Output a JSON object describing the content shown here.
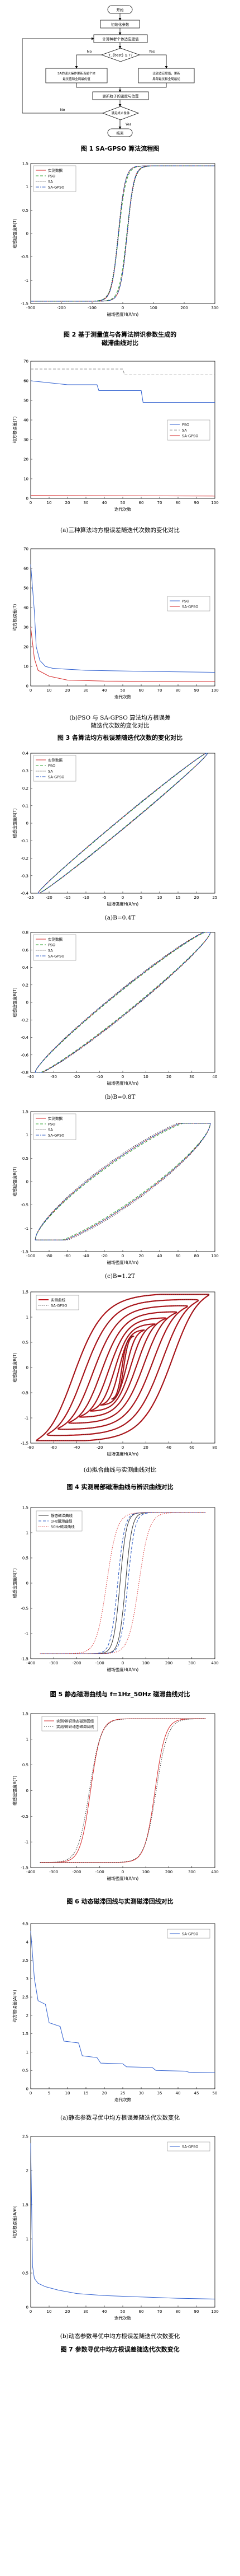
{
  "flowchart": {
    "start": "开始",
    "init": "初始化参数",
    "calc_fit": "计算种群个体适应度值",
    "cond": "T_{best} ≥ T?",
    "no": "No",
    "yes": "Yes",
    "sa": "SA的退火操作更新当前个体最优值和全局最优值",
    "update_local": "比较适应度值，更新局部最优和全局最优",
    "update_pos": "更新粒子的速度与位置",
    "end_cond": "满足终止条件",
    "end": "结束"
  },
  "captions": {
    "fig1": "图 1  SA-GPSO 算法流程图",
    "fig2": "图 2  基于测量值与各算法辨识参数生成的磁滞曲线对比",
    "fig3a": "(a)三种算法均方根误差随迭代次数的变化对比",
    "fig3b": "(b)PSO 与 SA-GPSO 算法均方根误差随迭代次数的变化对比",
    "fig3": "图 3  各算法均方根误差随迭代次数的变化对比",
    "fig4a": "(a)B=0.4T",
    "fig4b": "(b)B=0.8T",
    "fig4c": "(c)B=1.2T",
    "fig4d": "(d)拟合曲线与实测曲线对比",
    "fig4": "图 4  实测局部磁滞曲线与辨识曲线对比",
    "fig5": "图 5  静态磁滞曲线与 f=1Hz_50Hz 磁滞曲线对比",
    "fig6": "图 6  动态磁滞回线与实测磁滞回线对比",
    "fig7a": "(a)静态参数寻优中均方根误差随迭代次数变化",
    "fig7b": "(b)动态参数寻优中均方根误差随迭代次数变化",
    "fig7": "图 7  参数寻优中均方根误差随迭代次数变化"
  },
  "labels": {
    "H_axis": "磁场强度H(A/m)",
    "B_axis": "磁感应强度B(T)",
    "iter_axis": "迭代次数",
    "rmse_axis": "均方根误差(T)",
    "rmse_axis_am": "均方根误差(A/m)",
    "measured": "实测数据",
    "PSO": "PSO",
    "SA": "SA",
    "SA_GPSO": "SA-GPSO",
    "measured_curve": "实测曲线",
    "static_curve": "静态磁滞曲线",
    "dyn1": "1Hz磁滞曲线",
    "dyn50": "50Hz磁滞曲线",
    "dyn_vs_measured": "实测/辨识动态磁滞回线"
  },
  "chart_data": [
    {
      "id": "fig2",
      "type": "line",
      "xlabel": "磁场强度H(A/m)",
      "ylabel": "磁感应强度B(T)",
      "xlim": [
        -300,
        300
      ],
      "ylim": [
        -1.5,
        1.5
      ],
      "xticks": [
        -300,
        -200,
        -100,
        0,
        100,
        200,
        300
      ],
      "yticks": [
        -1.5,
        -1,
        -0.5,
        0,
        0.5,
        1,
        1.5
      ],
      "series": [
        {
          "name": "实测数据",
          "color": "#d62728",
          "style": "solid",
          "Bs": 1.45,
          "a": 22,
          "Hc": 14
        },
        {
          "name": "PSO",
          "color": "#2ca02c",
          "style": "dashed",
          "Bs": 1.45,
          "a": 24,
          "Hc": 13
        },
        {
          "name": "SA",
          "color": "#333333",
          "style": "dotted",
          "Bs": 1.45,
          "a": 23,
          "Hc": 15
        },
        {
          "name": "SA-GPSO",
          "color": "#1f4fbf",
          "style": "dashdot",
          "Bs": 1.45,
          "a": 22,
          "Hc": 14
        }
      ]
    },
    {
      "id": "fig3a",
      "type": "line",
      "xlabel": "迭代次数",
      "ylabel": "均方根误差(T)",
      "xlim": [
        0,
        100
      ],
      "ylim": [
        0,
        70
      ],
      "xticks": [
        0,
        10,
        20,
        30,
        40,
        50,
        60,
        70,
        80,
        90,
        100
      ],
      "yticks": [
        0,
        10,
        20,
        30,
        40,
        50,
        60,
        70
      ],
      "series": [
        {
          "name": "PSO",
          "color": "#2f5fcf",
          "style": "solid",
          "points": [
            [
              0,
              60
            ],
            [
              10,
              59
            ],
            [
              20,
              58
            ],
            [
              36,
              58
            ],
            [
              37,
              55
            ],
            [
              60,
              55
            ],
            [
              61,
              49
            ],
            [
              100,
              49
            ]
          ]
        },
        {
          "name": "SA",
          "color": "#888888",
          "style": "dashed",
          "points": [
            [
              0,
              66
            ],
            [
              50,
              66
            ],
            [
              51,
              63
            ],
            [
              100,
              63
            ]
          ]
        },
        {
          "name": "SA-GPSO",
          "color": "#d62728",
          "style": "solid",
          "points": [
            [
              0,
              1.5
            ],
            [
              100,
              1.2
            ]
          ]
        }
      ]
    },
    {
      "id": "fig3b",
      "type": "line",
      "xlabel": "迭代次数",
      "ylabel": "均方根误差(T)",
      "xlim": [
        0,
        100
      ],
      "ylim": [
        0,
        70
      ],
      "xticks": [
        0,
        10,
        20,
        30,
        40,
        50,
        60,
        70,
        80,
        90,
        100
      ],
      "yticks": [
        0,
        10,
        20,
        30,
        40,
        50,
        60,
        70
      ],
      "series": [
        {
          "name": "PSO",
          "color": "#2f5fcf",
          "style": "solid",
          "points": [
            [
              0,
              62
            ],
            [
              2,
              38
            ],
            [
              3,
              20
            ],
            [
              5,
              13
            ],
            [
              8,
              10
            ],
            [
              12,
              9
            ],
            [
              30,
              8
            ],
            [
              60,
              7.5
            ],
            [
              100,
              7
            ]
          ]
        },
        {
          "name": "SA-GPSO",
          "color": "#d62728",
          "style": "solid",
          "points": [
            [
              0,
              30
            ],
            [
              2,
              14
            ],
            [
              4,
              8
            ],
            [
              10,
              5
            ],
            [
              20,
              3
            ],
            [
              40,
              2.5
            ],
            [
              100,
              2.2
            ]
          ]
        }
      ]
    },
    {
      "id": "fig4a",
      "type": "line",
      "xlabel": "磁场强度H(A/m)",
      "ylabel": "磁感应强度B(T)",
      "xlim": [
        -25,
        25
      ],
      "ylim": [
        -0.4,
        0.4
      ],
      "xticks": [
        -25,
        -20,
        -15,
        -10,
        -5,
        0,
        5,
        10,
        15,
        20,
        25
      ],
      "yticks": [
        -0.4,
        -0.3,
        -0.2,
        -0.1,
        0,
        0.1,
        0.2,
        0.3,
        0.4
      ],
      "series": [
        {
          "name": "实测数据",
          "color": "#d62728",
          "style": "solid",
          "Hm": 23,
          "Bm": 0.4,
          "w": 0.07
        },
        {
          "name": "PSO",
          "color": "#2ca02c",
          "style": "dashed",
          "Hm": 23,
          "Bm": 0.4,
          "w": 0.065
        },
        {
          "name": "SA",
          "color": "#333333",
          "style": "dotted",
          "Hm": 23,
          "Bm": 0.4,
          "w": 0.075
        },
        {
          "name": "SA-GPSO",
          "color": "#1f4fbf",
          "style": "dashdot",
          "Hm": 23,
          "Bm": 0.4,
          "w": 0.07
        }
      ]
    },
    {
      "id": "fig4b",
      "type": "line",
      "xlabel": "磁场强度H(A/m)",
      "ylabel": "磁感应强度B(T)",
      "xlim": [
        -40,
        40
      ],
      "ylim": [
        -0.8,
        0.8
      ],
      "xticks": [
        -40,
        -30,
        -20,
        -10,
        0,
        10,
        20,
        30,
        40
      ],
      "yticks": [
        -0.8,
        -0.6,
        -0.4,
        -0.2,
        0,
        0.2,
        0.4,
        0.6,
        0.8
      ],
      "series": [
        {
          "name": "实测数据",
          "color": "#d62728",
          "style": "solid",
          "Hm": 38,
          "Bm": 0.8,
          "w": 0.16
        },
        {
          "name": "PSO",
          "color": "#2ca02c",
          "style": "dashed",
          "Hm": 38,
          "Bm": 0.8,
          "w": 0.15
        },
        {
          "name": "SA",
          "color": "#333333",
          "style": "dotted",
          "Hm": 38,
          "Bm": 0.8,
          "w": 0.17
        },
        {
          "name": "SA-GPSO",
          "color": "#1f4fbf",
          "style": "dashdot",
          "Hm": 38,
          "Bm": 0.8,
          "w": 0.16
        }
      ]
    },
    {
      "id": "fig4c",
      "type": "line",
      "xlabel": "磁场强度H(A/m)",
      "ylabel": "磁感应强度B(T)",
      "xlim": [
        -100,
        100
      ],
      "ylim": [
        -1.5,
        1.5
      ],
      "xticks": [
        -100,
        -80,
        -60,
        -40,
        -20,
        0,
        20,
        40,
        60,
        80,
        100
      ],
      "yticks": [
        -1.5,
        -1,
        -0.5,
        0,
        0.5,
        1,
        1.5
      ],
      "series": [
        {
          "name": "实测数据",
          "color": "#d62728",
          "style": "solid",
          "Hm": 95,
          "Bm": 1.25,
          "w": 0.38
        },
        {
          "name": "PSO",
          "color": "#2ca02c",
          "style": "dashed",
          "Hm": 95,
          "Bm": 1.25,
          "w": 0.36
        },
        {
          "name": "SA",
          "color": "#333333",
          "style": "dotted",
          "Hm": 95,
          "Bm": 1.25,
          "w": 0.4
        },
        {
          "name": "SA-GPSO",
          "color": "#1f4fbf",
          "style": "dashdot",
          "Hm": 95,
          "Bm": 1.25,
          "w": 0.38
        }
      ]
    },
    {
      "id": "fig4d",
      "type": "line",
      "xlabel": "磁场强度H(A/m)",
      "ylabel": "磁感应强度B(T)",
      "xlim": [
        -80,
        80
      ],
      "ylim": [
        -1.5,
        1.5
      ],
      "xticks": [
        -80,
        -60,
        -40,
        -20,
        0,
        20,
        40,
        60,
        80
      ],
      "yticks": [
        -1.5,
        -1,
        -0.5,
        0,
        0.5,
        1,
        1.5
      ],
      "series": [
        {
          "name": "实测曲线",
          "color": "#c0151b",
          "style": "thick",
          "loops": 8,
          "Hmax": 75,
          "Bmax": 1.45
        },
        {
          "name": "SA-GPSO",
          "color": "#2a2a2a",
          "style": "dotted",
          "loops": 8,
          "Hmax": 75,
          "Bmax": 1.45
        }
      ]
    },
    {
      "id": "fig5",
      "type": "line",
      "xlabel": "磁场强度H(A/m)",
      "ylabel": "磁感应强度B(T)",
      "xlim": [
        -400,
        400
      ],
      "ylim": [
        -1.5,
        1.5
      ],
      "xticks": [
        -400,
        -300,
        -200,
        -100,
        0,
        100,
        200,
        300,
        400
      ],
      "yticks": [
        -1.5,
        -1,
        -0.5,
        0,
        0.5,
        1,
        1.5
      ],
      "series": [
        {
          "name": "静态磁滞曲线",
          "color": "#333333",
          "style": "solid",
          "Hc": 12,
          "a": 28
        },
        {
          "name": "1Hz磁滞曲线",
          "color": "#1f4fbf",
          "style": "dashed",
          "Hc": 22,
          "a": 30
        },
        {
          "name": "50Hz磁滞曲线",
          "color": "#d62728",
          "style": "dotted",
          "Hc": 70,
          "a": 45
        }
      ]
    },
    {
      "id": "fig6",
      "type": "line",
      "xlabel": "磁场强度H(A/m)",
      "ylabel": "磁感应强度B(T)",
      "xlim": [
        -400,
        400
      ],
      "ylim": [
        -1.5,
        1.5
      ],
      "xticks": [
        -400,
        -300,
        -200,
        -100,
        0,
        100,
        200,
        300,
        400
      ],
      "yticks": [
        -1.5,
        -1,
        -0.5,
        0,
        0.5,
        1,
        1.5
      ],
      "series": [
        {
          "name": "实测/辨识动态磁滞回线",
          "color": "#d62728",
          "style": "solid",
          "Hc": 140,
          "a": 45
        },
        {
          "name": "实测/辨识动态磁滞回线",
          "color": "#2a2a2a",
          "style": "dotted",
          "Hc": 145,
          "a": 50
        }
      ]
    },
    {
      "id": "fig7a",
      "type": "line",
      "xlabel": "迭代次数",
      "ylabel": "均方根误差(A/m)",
      "xlim": [
        0,
        50
      ],
      "ylim": [
        0,
        4.5
      ],
      "xticks": [
        0,
        5,
        10,
        15,
        20,
        25,
        30,
        35,
        40,
        45,
        50
      ],
      "yticks": [
        0,
        0.5,
        1,
        1.5,
        2,
        2.5,
        3,
        3.5,
        4,
        4.5
      ],
      "series": [
        {
          "name": "SA-GPSO",
          "color": "#2f5fcf",
          "style": "solid",
          "points": [
            [
              0,
              4.3
            ],
            [
              1,
              3.0
            ],
            [
              2,
              2.4
            ],
            [
              4,
              2.3
            ],
            [
              5,
              1.8
            ],
            [
              8,
              1.7
            ],
            [
              9,
              1.3
            ],
            [
              13,
              1.25
            ],
            [
              14,
              0.9
            ],
            [
              18,
              0.85
            ],
            [
              19,
              0.7
            ],
            [
              25,
              0.68
            ],
            [
              26,
              0.6
            ],
            [
              33,
              0.58
            ],
            [
              34,
              0.5
            ],
            [
              42,
              0.48
            ],
            [
              43,
              0.45
            ],
            [
              50,
              0.44
            ]
          ]
        }
      ]
    },
    {
      "id": "fig7b",
      "type": "line",
      "xlabel": "迭代次数",
      "ylabel": "均方根误差(A/m)",
      "xlim": [
        0,
        100
      ],
      "ylim": [
        0,
        2.5
      ],
      "xticks": [
        0,
        10,
        20,
        30,
        40,
        50,
        60,
        70,
        80,
        90,
        100
      ],
      "yticks": [
        0,
        0.5,
        1,
        1.5,
        2,
        2.5
      ],
      "series": [
        {
          "name": "SA-GPSO",
          "color": "#2f5fcf",
          "style": "solid",
          "points": [
            [
              0,
              2.4
            ],
            [
              1,
              0.6
            ],
            [
              2,
              0.42
            ],
            [
              4,
              0.35
            ],
            [
              8,
              0.3
            ],
            [
              15,
              0.25
            ],
            [
              25,
              0.2
            ],
            [
              40,
              0.17
            ],
            [
              60,
              0.15
            ],
            [
              80,
              0.13
            ],
            [
              100,
              0.12
            ]
          ]
        }
      ]
    }
  ]
}
